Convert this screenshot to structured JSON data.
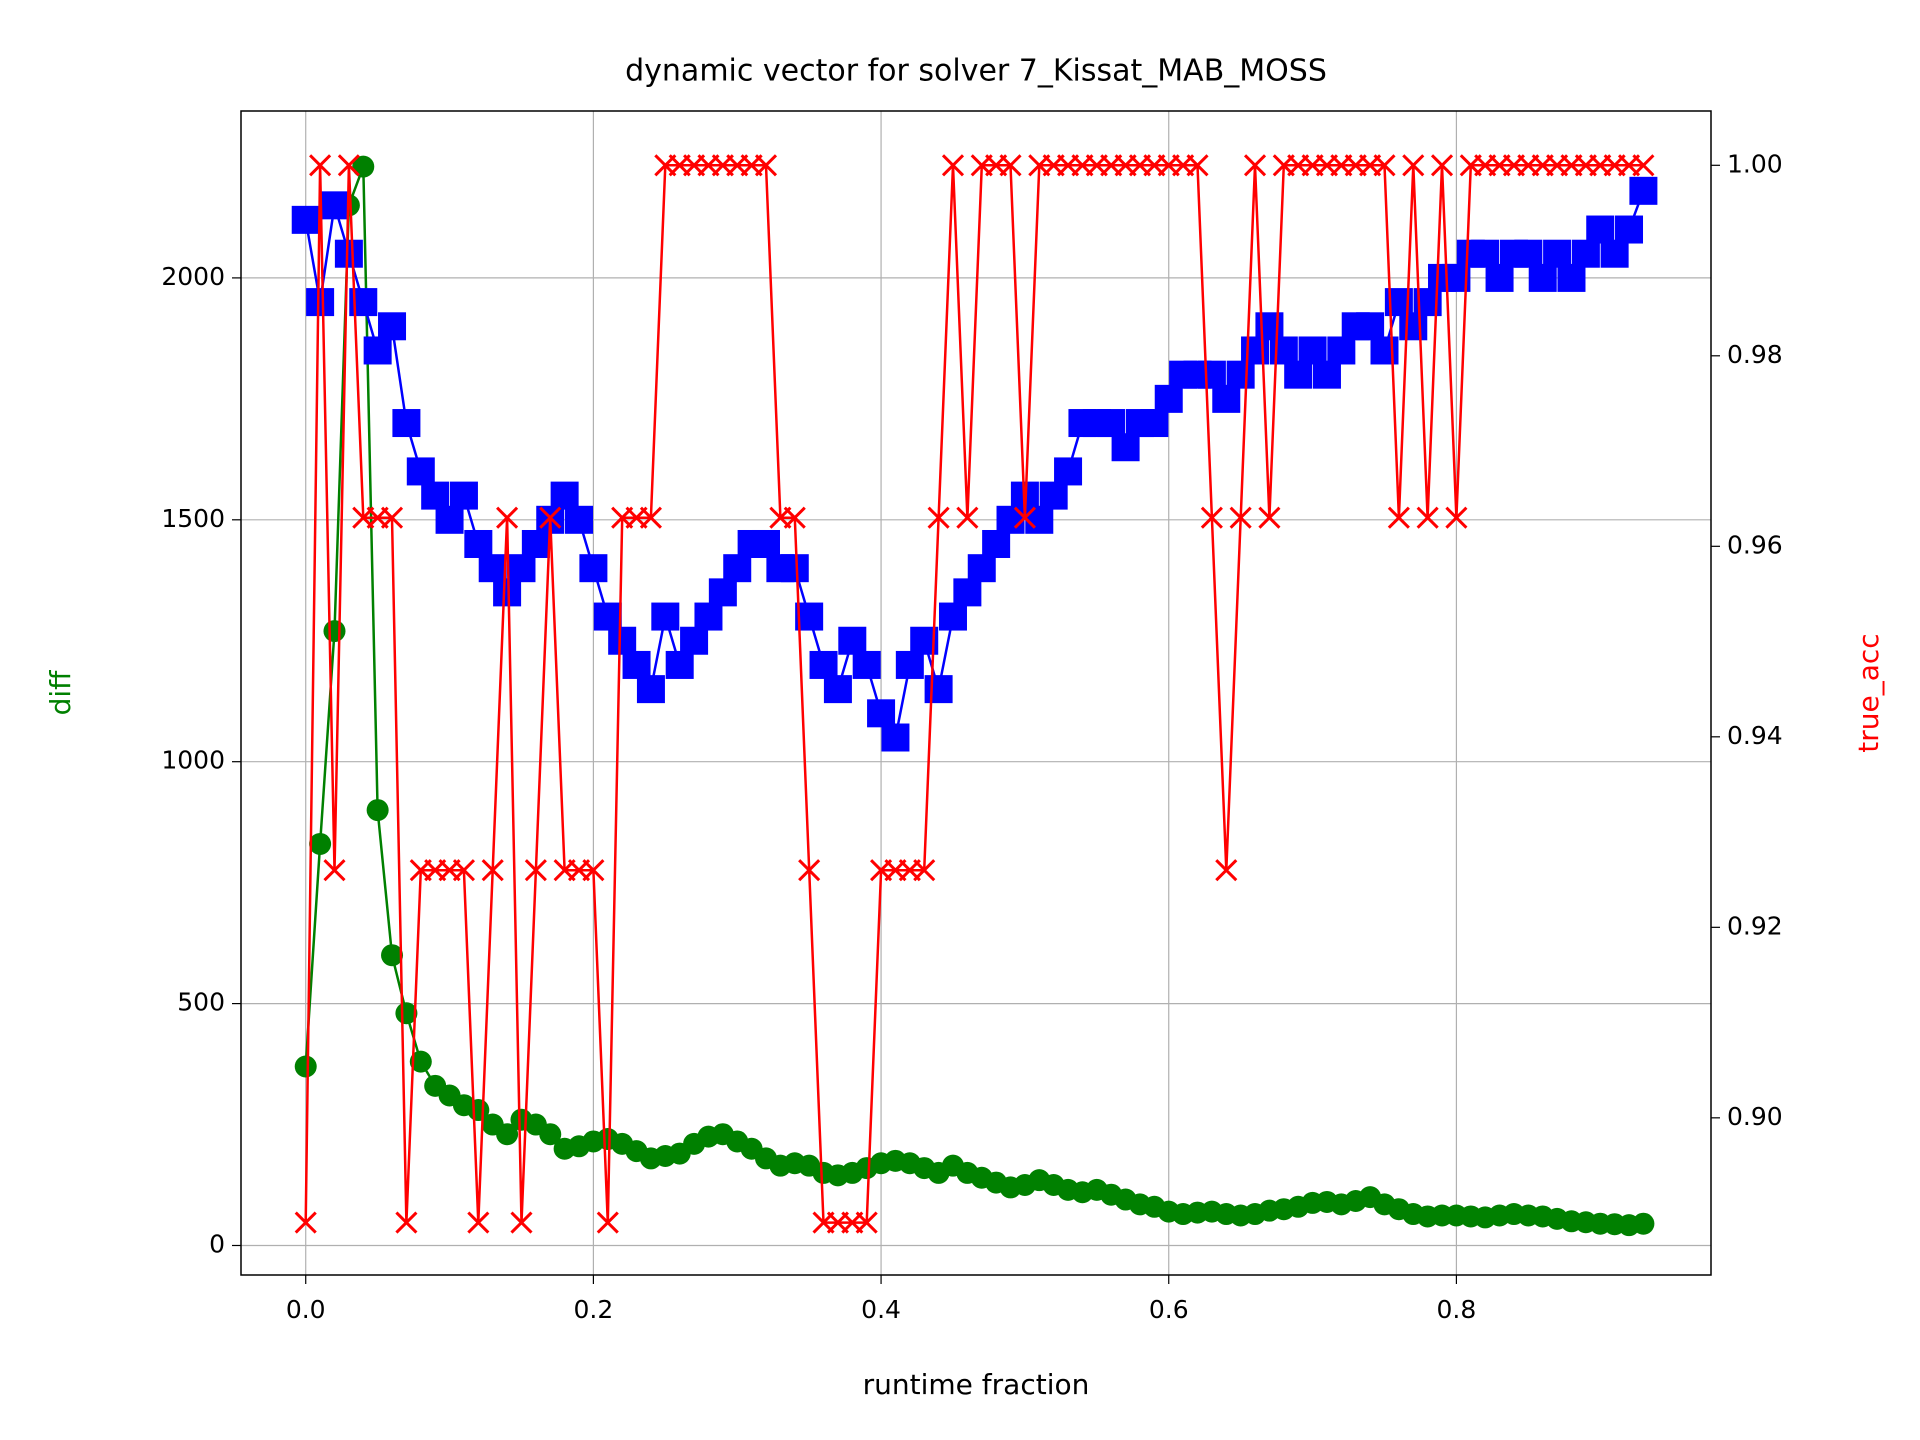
{
  "chart_data": {
    "type": "line",
    "title": "dynamic vector for solver 7_Kissat_MAB_MOSS",
    "x_label": "runtime fraction",
    "y_label": "diff",
    "y2_label": "true_acc",
    "y_label_color": "#008000",
    "y2_label_color": "#ff0000",
    "grid": true,
    "xlim": [
      -0.045,
      0.977
    ],
    "ylim": [
      -61,
      2345
    ],
    "y2lim": [
      0.8835,
      1.0057
    ],
    "xticks": [
      {
        "value": 0,
        "label": "0.0"
      },
      0.2,
      0.4,
      0.6,
      0.8
    ],
    "yticks": [
      0,
      500,
      1000,
      1500,
      2000
    ],
    "y2ticks": [
      {
        "value": 0.9,
        "label": "0.90"
      },
      0.92,
      0.94,
      0.96,
      0.98,
      {
        "value": 1,
        "label": "1.00"
      }
    ],
    "x": [
      0,
      0.01,
      0.02,
      0.03,
      0.04,
      0.05,
      0.06,
      0.07,
      0.08,
      0.09,
      0.1,
      0.11,
      0.12,
      0.13,
      0.14,
      0.15,
      0.16,
      0.17,
      0.18,
      0.19,
      0.2,
      0.21,
      0.22,
      0.23,
      0.24,
      0.25,
      0.26,
      0.27,
      0.28,
      0.29,
      0.3,
      0.31,
      0.32,
      0.33,
      0.34,
      0.35,
      0.36,
      0.37,
      0.38,
      0.39,
      0.4,
      0.41,
      0.42,
      0.43,
      0.44,
      0.45,
      0.46,
      0.47,
      0.48,
      0.49,
      0.5,
      0.51,
      0.52,
      0.53,
      0.54,
      0.55,
      0.56,
      0.57,
      0.58,
      0.59,
      0.6,
      0.61,
      0.62,
      0.63,
      0.64,
      0.65,
      0.66,
      0.67,
      0.68,
      0.69,
      0.7,
      0.71,
      0.72,
      0.73,
      0.74,
      0.75,
      0.76,
      0.77,
      0.78,
      0.79,
      0.8,
      0.81,
      0.82,
      0.83,
      0.84,
      0.85,
      0.86,
      0.87,
      0.88,
      0.89,
      0.9,
      0.91,
      0.92,
      0.93
    ],
    "series": [
      {
        "color": "#008000",
        "marker": "circle",
        "axis": "y",
        "values": [
          370,
          830,
          1270,
          2150,
          2230,
          900,
          600,
          480,
          380,
          330,
          310,
          290,
          280,
          250,
          230,
          260,
          250,
          230,
          200,
          205,
          215,
          220,
          210,
          195,
          180,
          185,
          190,
          210,
          225,
          230,
          215,
          200,
          180,
          165,
          170,
          165,
          150,
          145,
          150,
          160,
          170,
          175,
          170,
          160,
          150,
          165,
          150,
          140,
          130,
          120,
          125,
          135,
          125,
          115,
          110,
          115,
          105,
          95,
          85,
          80,
          70,
          65,
          68,
          70,
          65,
          62,
          65,
          72,
          75,
          80,
          88,
          90,
          85,
          92,
          100,
          85,
          75,
          65,
          60,
          62,
          62,
          60,
          58,
          62,
          65,
          62,
          60,
          55,
          50,
          48,
          45,
          44,
          42,
          45
        ]
      },
      {
        "color": "#0000ff",
        "marker": "square",
        "axis": "y",
        "values": [
          2120,
          1950,
          2150,
          2050,
          1950,
          1850,
          1900,
          1700,
          1600,
          1550,
          1500,
          1550,
          1450,
          1400,
          1350,
          1400,
          1450,
          1500,
          1550,
          1500,
          1400,
          1300,
          1250,
          1200,
          1150,
          1300,
          1200,
          1250,
          1300,
          1350,
          1400,
          1450,
          1450,
          1400,
          1400,
          1300,
          1200,
          1150,
          1250,
          1200,
          1100,
          1050,
          1200,
          1250,
          1150,
          1300,
          1350,
          1400,
          1450,
          1500,
          1550,
          1500,
          1550,
          1600,
          1700,
          1700,
          1700,
          1650,
          1700,
          1700,
          1750,
          1800,
          1800,
          1800,
          1750,
          1800,
          1850,
          1900,
          1850,
          1800,
          1850,
          1800,
          1850,
          1900,
          1900,
          1850,
          1950,
          1900,
          1950,
          2000,
          2000,
          2050,
          2050,
          2000,
          2050,
          2050,
          2000,
          2050,
          2000,
          2050,
          2100,
          2050,
          2100,
          2180
        ]
      },
      {
        "color": "#ff0000",
        "marker": "x",
        "axis": "y2",
        "values": [
          0.889,
          1,
          0.926,
          1,
          0.963,
          0.963,
          0.963,
          0.889,
          0.926,
          0.926,
          0.926,
          0.926,
          0.889,
          0.926,
          0.963,
          0.889,
          0.926,
          0.963,
          0.926,
          0.926,
          0.926,
          0.889,
          0.963,
          0.963,
          0.963,
          1,
          1,
          1,
          1,
          1,
          1,
          1,
          1,
          0.963,
          0.963,
          0.926,
          0.889,
          0.889,
          0.889,
          0.889,
          0.926,
          0.926,
          0.926,
          0.926,
          0.963,
          1,
          0.963,
          1,
          1,
          1,
          0.963,
          1,
          1,
          1,
          1,
          1,
          1,
          1,
          1,
          1,
          1,
          1,
          1,
          0.963,
          0.926,
          0.963,
          1,
          0.963,
          1,
          1,
          1,
          1,
          1,
          1,
          1,
          1,
          0.963,
          1,
          0.963,
          1,
          0.963,
          1,
          1,
          1,
          1,
          1,
          1,
          1,
          1,
          1,
          1,
          1,
          1,
          1
        ]
      }
    ]
  }
}
